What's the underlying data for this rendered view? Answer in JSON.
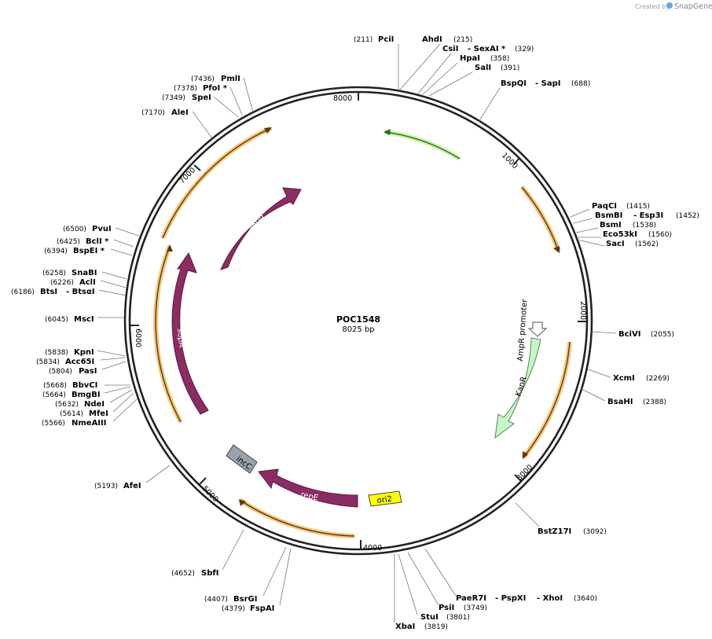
{
  "credit": {
    "prefix": "Created by",
    "brand": "SnapGene"
  },
  "plasmid": {
    "name": "POC1548",
    "size_label": "8025 bp",
    "length": 8025
  },
  "ticks": [
    {
      "bp": 1000,
      "label": "1000"
    },
    {
      "bp": 2000,
      "label": "2000"
    },
    {
      "bp": 3000,
      "label": "3000"
    },
    {
      "bp": 4000,
      "label": "4000"
    },
    {
      "bp": 5000,
      "label": "5000"
    },
    {
      "bp": 6000,
      "label": "6000"
    },
    {
      "bp": 7000,
      "label": "7000"
    },
    {
      "bp": 8000,
      "label": "8000"
    }
  ],
  "features": [
    {
      "id": "sopB",
      "label": "sopB",
      "color": "#8b2c62",
      "arrow": "cw"
    },
    {
      "id": "sopA",
      "label": "sopA",
      "color": "#8b2c62",
      "arrow": "ccw"
    },
    {
      "id": "repE",
      "label": "repE",
      "color": "#8b2c62",
      "arrow": "ccw"
    },
    {
      "id": "incC",
      "label": "incC",
      "color": "#9aa3ad"
    },
    {
      "id": "ori2",
      "label": "ori2",
      "color": "#ffff00"
    },
    {
      "id": "KanR",
      "label": "KanR",
      "color": "#c8f5c8",
      "arrow": "cw"
    },
    {
      "id": "AmpR promoter",
      "label": "AmpR promoter",
      "color": "#ffffff"
    }
  ],
  "enzymes": [
    {
      "name": "PciI",
      "pos": "(211)"
    },
    {
      "name": "AhdI",
      "pos": "(215)"
    },
    {
      "name": "CsiI",
      "pos": ""
    },
    {
      "name": "SexAI *",
      "pos": "(329)"
    },
    {
      "name": "HpaI",
      "pos": "(358)"
    },
    {
      "name": "SalI",
      "pos": "(391)"
    },
    {
      "name": "BspQI",
      "pos": ""
    },
    {
      "name": "SapI",
      "pos": "(688)"
    },
    {
      "name": "PaqCI",
      "pos": "(1415)"
    },
    {
      "name": "BsmBI",
      "pos": ""
    },
    {
      "name": "Esp3I",
      "pos": "(1452)"
    },
    {
      "name": "BsmI",
      "pos": "(1538)"
    },
    {
      "name": "Eco53kI",
      "pos": "(1560)"
    },
    {
      "name": "SacI",
      "pos": "(1562)"
    },
    {
      "name": "BciVI",
      "pos": "(2055)"
    },
    {
      "name": "XcmI",
      "pos": "(2269)"
    },
    {
      "name": "BsaHI",
      "pos": "(2388)"
    },
    {
      "name": "BstZ17I",
      "pos": "(3092)"
    },
    {
      "name": "PaeR7I",
      "pos": ""
    },
    {
      "name": "PspXI",
      "pos": ""
    },
    {
      "name": "XhoI",
      "pos": "(3640)"
    },
    {
      "name": "PsiI",
      "pos": "(3749)"
    },
    {
      "name": "StuI",
      "pos": "(3801)"
    },
    {
      "name": "XbaI",
      "pos": "(3819)"
    },
    {
      "name": "FspAI",
      "pos": "(4379)"
    },
    {
      "name": "BsrGI",
      "pos": "(4407)"
    },
    {
      "name": "SbfI",
      "pos": "(4652)"
    },
    {
      "name": "AfeI",
      "pos": "(5193)"
    },
    {
      "name": "NmeAIII",
      "pos": "(5566)"
    },
    {
      "name": "MfeI",
      "pos": "(5614)"
    },
    {
      "name": "NdeI",
      "pos": "(5632)"
    },
    {
      "name": "BmgBI",
      "pos": "(5664)"
    },
    {
      "name": "BbvCI",
      "pos": "(5668)"
    },
    {
      "name": "PasI",
      "pos": "(5804)"
    },
    {
      "name": "Acc65I",
      "pos": "(5834)"
    },
    {
      "name": "KpnI",
      "pos": "(5838)"
    },
    {
      "name": "MscI",
      "pos": "(6045)"
    },
    {
      "name": "BtsI",
      "pos": "(6186)"
    },
    {
      "name": "BtsαI",
      "pos": ""
    },
    {
      "name": "AclI",
      "pos": "(6226)"
    },
    {
      "name": "SnaBI",
      "pos": "(6258)"
    },
    {
      "name": "BspEI *",
      "pos": "(6394)"
    },
    {
      "name": "BclI *",
      "pos": "(6425)"
    },
    {
      "name": "PvuI",
      "pos": "(6500)"
    },
    {
      "name": "AleI",
      "pos": "(7170)"
    },
    {
      "name": "SpeI",
      "pos": "(7349)"
    },
    {
      "name": "PfoI *",
      "pos": "(7378)"
    },
    {
      "name": "PmlI",
      "pos": "(7436)"
    }
  ]
}
